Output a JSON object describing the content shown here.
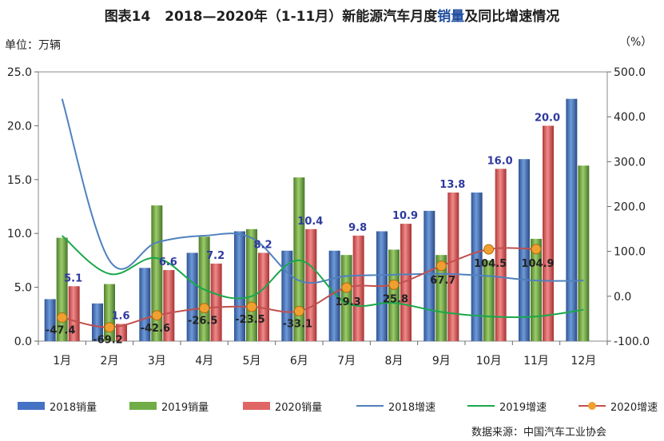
{
  "title": {
    "prefix": "图表14",
    "main_a": "2018—2020年（1-11月）新能源汽车月度",
    "main_hl": "销量",
    "main_b": "及同比增速情况"
  },
  "unit_left": "单位：万辆",
  "unit_right": "（%）",
  "source": "数据来源：中国汽车工业协会",
  "colors": {
    "s2018": "#4472c4",
    "s2019": "#70ad47",
    "s2020": "#e06666",
    "g2018": "#4f81bd",
    "g2019": "#1aa84b",
    "g2020": "#c0504d",
    "g2020_marker": "#f0a030",
    "label_2020": "#2e3a9e"
  },
  "chart_data": {
    "type": "bar",
    "categories": [
      "1月",
      "2月",
      "3月",
      "4月",
      "5月",
      "6月",
      "7月",
      "8月",
      "9月",
      "10月",
      "11月",
      "12月"
    ],
    "ylim": [
      0,
      25
    ],
    "yticks": [
      "0.0",
      "5.0",
      "10.0",
      "15.0",
      "20.0",
      "25.0"
    ],
    "y2lim": [
      -100,
      500
    ],
    "y2ticks": [
      "-100.0",
      "0.0",
      "100.0",
      "200.0",
      "300.0",
      "400.0",
      "500.0"
    ],
    "series": [
      {
        "name": "2018销量",
        "kind": "bar",
        "axis": "left",
        "values": [
          3.9,
          3.5,
          6.8,
          8.2,
          10.2,
          8.4,
          8.4,
          10.2,
          12.1,
          13.8,
          16.9,
          22.5
        ]
      },
      {
        "name": "2019销量",
        "kind": "bar",
        "axis": "left",
        "values": [
          9.6,
          5.3,
          12.6,
          9.7,
          10.4,
          15.2,
          8.0,
          8.5,
          8.0,
          7.5,
          9.5,
          16.3
        ]
      },
      {
        "name": "2020销量",
        "kind": "bar",
        "axis": "left",
        "values": [
          5.1,
          1.6,
          6.6,
          7.2,
          8.2,
          10.4,
          9.8,
          10.9,
          13.8,
          16.0,
          20.0,
          null
        ],
        "labels": [
          "5.1",
          "1.6",
          "6.6",
          "7.2",
          "8.2",
          "10.4",
          "9.8",
          "10.9",
          "13.8",
          "16.0",
          "20.0",
          ""
        ]
      },
      {
        "name": "2018增速",
        "kind": "line",
        "axis": "right",
        "values": [
          440,
          80,
          120,
          135,
          130,
          35,
          45,
          48,
          50,
          45,
          35,
          35
        ]
      },
      {
        "name": "2019增速",
        "kind": "line",
        "axis": "right",
        "values": [
          135,
          50,
          85,
          15,
          0,
          80,
          -15,
          -15,
          -35,
          -45,
          -45,
          -30
        ]
      },
      {
        "name": "2020增速",
        "kind": "line",
        "axis": "right",
        "values": [
          -47.4,
          -69.2,
          -42.6,
          -26.5,
          -23.5,
          -33.1,
          19.3,
          25.8,
          67.7,
          104.5,
          104.9,
          null
        ],
        "labels": [
          "-47.4",
          "-69.2",
          "-42.6",
          "-26.5",
          "-23.5",
          "-33.1",
          "19.3",
          "25.8",
          "67.7",
          "104.5",
          "104.9",
          ""
        ]
      }
    ]
  }
}
